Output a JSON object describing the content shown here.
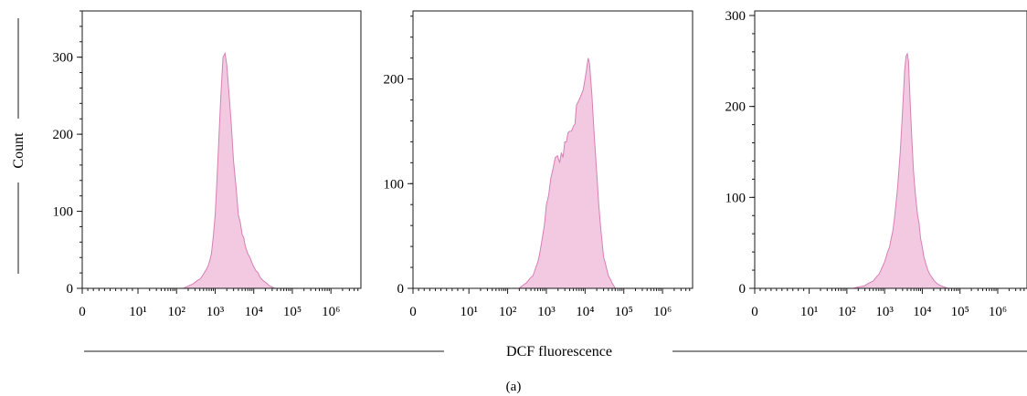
{
  "figure": {
    "y_axis_label": "Count",
    "x_axis_label": "DCF fluorescence",
    "caption": "(a)"
  },
  "colors": {
    "fill": "#f2c9e1",
    "stroke": "#d77fb6",
    "axis": "#1a1a1a"
  },
  "chart_data": [
    {
      "type": "area",
      "x_scale": "log",
      "x_tick_labels": [
        "0",
        "10¹",
        "10²",
        "10³",
        "10⁴",
        "10⁵",
        "10⁶"
      ],
      "ylim": [
        0,
        360
      ],
      "y_ticks": [
        0,
        100,
        200,
        300
      ],
      "ylabel": "Count",
      "xlabel": "DCF fluorescence",
      "series": [
        {
          "x": [
            150,
            250,
            400,
            600,
            800,
            1000,
            1200,
            1400,
            1600,
            1800,
            2000,
            2300,
            2600,
            3000,
            3500,
            4000,
            5000,
            6000,
            7000,
            8000,
            10000,
            13000,
            16000,
            20000,
            26000,
            35000
          ],
          "values": [
            0,
            5,
            12,
            25,
            45,
            95,
            175,
            250,
            300,
            305,
            290,
            250,
            215,
            165,
            130,
            95,
            70,
            55,
            45,
            40,
            28,
            20,
            12,
            8,
            3,
            0
          ]
        }
      ]
    },
    {
      "type": "area",
      "x_scale": "log",
      "x_tick_labels": [
        "0",
        "10¹",
        "10²",
        "10³",
        "10⁴",
        "10⁵",
        "10⁶"
      ],
      "ylim": [
        0,
        265
      ],
      "y_ticks": [
        0,
        100,
        200
      ],
      "series": [
        {
          "x": [
            200,
            300,
            450,
            600,
            800,
            1000,
            1300,
            1700,
            2200,
            2700,
            3300,
            4000,
            5000,
            6000,
            7000,
            8000,
            9000,
            10000,
            11000,
            12000,
            13000,
            15000,
            17000,
            20000,
            25000,
            30000,
            40000,
            50000,
            60000
          ],
          "values": [
            0,
            5,
            12,
            25,
            50,
            80,
            105,
            125,
            120,
            125,
            140,
            150,
            155,
            175,
            180,
            185,
            190,
            200,
            210,
            220,
            215,
            185,
            150,
            110,
            60,
            30,
            12,
            5,
            0
          ]
        }
      ]
    },
    {
      "type": "area",
      "x_scale": "log",
      "x_tick_labels": [
        "0",
        "10¹",
        "10²",
        "10³",
        "10⁴",
        "10⁵",
        "10⁶"
      ],
      "ylim": [
        0,
        305
      ],
      "y_ticks": [
        0,
        100,
        200,
        300
      ],
      "series": [
        {
          "x": [
            150,
            300,
            500,
            700,
            900,
            1200,
            1500,
            1800,
            2200,
            2600,
            3000,
            3400,
            3700,
            4000,
            4300,
            4700,
            5200,
            5800,
            6500,
            7500,
            9000,
            11000,
            14000,
            18000,
            25000,
            35000,
            50000
          ],
          "values": [
            0,
            3,
            8,
            15,
            25,
            40,
            55,
            75,
            110,
            150,
            195,
            240,
            255,
            258,
            250,
            210,
            170,
            130,
            105,
            80,
            55,
            35,
            20,
            12,
            5,
            2,
            0
          ]
        }
      ]
    }
  ]
}
